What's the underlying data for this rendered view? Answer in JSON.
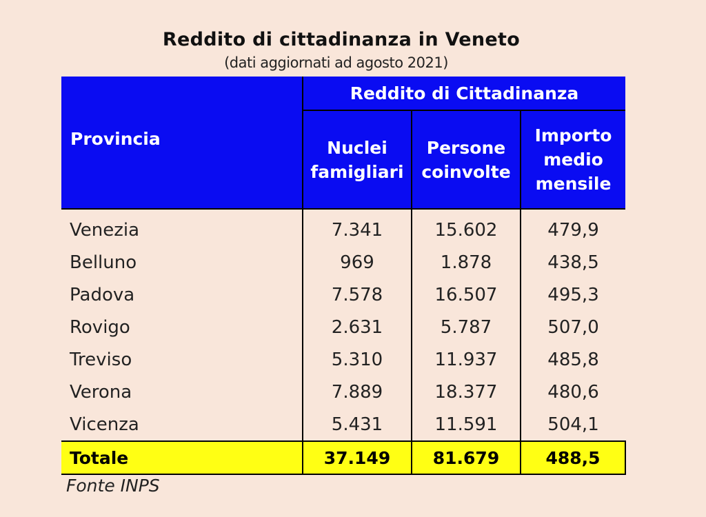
{
  "title": "Reddito di cittadinanza in Veneto",
  "subtitle": "(dati aggiornati ad agosto 2021)",
  "table": {
    "col_provincia": "Provincia",
    "group_header": "Reddito di Cittadinanza",
    "sub_headers": [
      [
        "Nuclei",
        "famigliari"
      ],
      [
        "Persone",
        "coinvolte"
      ],
      [
        "Importo",
        "medio",
        "mensile"
      ]
    ],
    "rows": [
      {
        "provincia": "Venezia",
        "nuclei": "7.341",
        "persone": "15.602",
        "importo": "479,9"
      },
      {
        "provincia": "Belluno",
        "nuclei": "969",
        "persone": "1.878",
        "importo": "438,5"
      },
      {
        "provincia": "Padova",
        "nuclei": "7.578",
        "persone": "16.507",
        "importo": "495,3"
      },
      {
        "provincia": "Rovigo",
        "nuclei": "2.631",
        "persone": "5.787",
        "importo": "507,0"
      },
      {
        "provincia": "Treviso",
        "nuclei": "5.310",
        "persone": "11.937",
        "importo": "485,8"
      },
      {
        "provincia": "Verona",
        "nuclei": "7.889",
        "persone": "18.377",
        "importo": "480,6"
      },
      {
        "provincia": "Vicenza",
        "nuclei": "5.431",
        "persone": "11.591",
        "importo": "504,1"
      }
    ],
    "total": {
      "label": "Totale",
      "nuclei": "37.149",
      "persone": "81.679",
      "importo": "488,5"
    }
  },
  "source": "Fonte INPS",
  "colors": {
    "background": "#f9e6da",
    "header_blue": "#0a0cf2",
    "total_yellow": "#ffff14"
  }
}
